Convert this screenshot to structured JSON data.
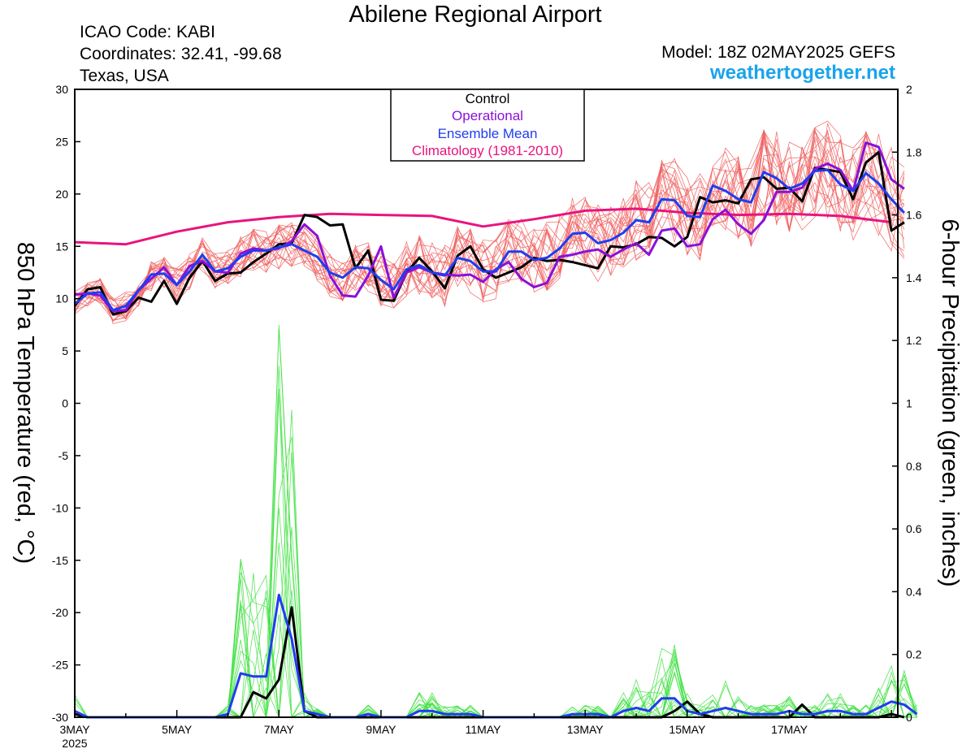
{
  "header": {
    "title": "Abilene Regional Airport",
    "icao": "ICAO Code: KABI",
    "coordinates": "Coordinates: 32.41, -99.68",
    "region": "Texas, USA",
    "model": "Model: 18Z 02MAY2025 GEFS",
    "website": "weathertogether.net"
  },
  "colors": {
    "control": "#000000",
    "operational": "#8a10d8",
    "ensemble_mean": "#1f3df0",
    "climatology": "#e8147e",
    "members_temp": "#f06060",
    "members_precip": "#3ee040",
    "website": "#1aa3ec"
  },
  "chart_data": {
    "type": "line",
    "y_left": {
      "label": "850 hPa Temperature (red, °C)",
      "range": [
        -30,
        30
      ],
      "ticks": [
        "30",
        "25",
        "20",
        "15",
        "10",
        "5",
        "0",
        "-5",
        "-10",
        "-15",
        "-20",
        "-25",
        "-30"
      ]
    },
    "y_right": {
      "label": "6-hour Precipitation (green, inches)",
      "range": [
        0,
        2
      ],
      "ticks": [
        "2",
        "1.8",
        "1.6",
        "1.4",
        "1.2",
        "1",
        "0.8",
        "0.6",
        "0.4",
        "0.2",
        "0"
      ]
    },
    "x_range_days": [
      0,
      16.125
    ],
    "x_ticks": [
      {
        "day": 0,
        "label": "3MAY",
        "sub": "2025"
      },
      {
        "day": 2,
        "label": "5MAY",
        "sub": ""
      },
      {
        "day": 4,
        "label": "7MAY",
        "sub": ""
      },
      {
        "day": 6,
        "label": "9MAY",
        "sub": ""
      },
      {
        "day": 8,
        "label": "11MAY",
        "sub": ""
      },
      {
        "day": 10,
        "label": "13MAY",
        "sub": ""
      },
      {
        "day": 12,
        "label": "15MAY",
        "sub": ""
      },
      {
        "day": 14,
        "label": "17MAY",
        "sub": ""
      }
    ],
    "legend": [
      "Control",
      "Operational",
      "Ensemble Mean",
      "Climatology (1981-2010)"
    ],
    "legend_position": "top-center",
    "grid": false,
    "series": [
      {
        "name": "Control",
        "axis": "temperature",
        "x_start_day": 0,
        "x_step_days": 0.25,
        "values": [
          9.3,
          10.9,
          11.1,
          8.5,
          8.8,
          10.1,
          9.7,
          11.7,
          9.5,
          12.0,
          13.6,
          11.7,
          12.4,
          12.5,
          13.5,
          14.3,
          15.2,
          15.3,
          18.0,
          17.8,
          17.0,
          17.1,
          12.9,
          14.6,
          9.9,
          9.8,
          12.5,
          13.9,
          12.6,
          11.0,
          14.1,
          15.0,
          12.8,
          12.0,
          12.5,
          13.0,
          13.9,
          13.6,
          13.7,
          13.5,
          13.2,
          12.9,
          15.0,
          14.9,
          15.2,
          15.9,
          15.8,
          15.0,
          15.9,
          19.7,
          19.2,
          19.4,
          19.1,
          21.4,
          21.6,
          20.5,
          20.6,
          19.3,
          22.5,
          22.3,
          22.1,
          19.5,
          23.0,
          24.0,
          16.5,
          17.3
        ]
      },
      {
        "name": "Operational",
        "axis": "temperature",
        "x_start_day": 0,
        "x_step_days": 0.25,
        "values": [
          10.4,
          10.5,
          10.3,
          8.8,
          8.9,
          10.8,
          11.9,
          13.0,
          11.3,
          13.1,
          13.6,
          12.6,
          12.5,
          14.3,
          14.8,
          14.6,
          14.8,
          15.5,
          17.1,
          16.0,
          12.2,
          10.3,
          10.2,
          12.2,
          15.0,
          10.1,
          12.5,
          13.0,
          12.5,
          12.3,
          12.2,
          12.3,
          11.6,
          12.8,
          13.5,
          11.9,
          11.1,
          11.5,
          14.0,
          14.2,
          14.5,
          14.7,
          14.0,
          14.7,
          15.3,
          14.2,
          16.5,
          16.7,
          15.0,
          15.2,
          17.6,
          18.5,
          17.1,
          16.2,
          17.5,
          20.2,
          20.2,
          20.6,
          22.4,
          22.9,
          22.3,
          20.3,
          24.9,
          24.5,
          21.4,
          20.5
        ]
      },
      {
        "name": "Ensemble Mean",
        "axis": "temperature",
        "x_start_day": 0,
        "x_step_days": 0.25,
        "values": [
          9.5,
          10.5,
          10.6,
          8.9,
          9.3,
          10.8,
          12.3,
          12.4,
          11.3,
          12.6,
          14.2,
          12.6,
          12.9,
          14.0,
          14.6,
          14.6,
          14.9,
          15.2,
          14.6,
          14.0,
          12.5,
          12.0,
          13.0,
          12.9,
          11.8,
          10.9,
          12.8,
          13.2,
          12.5,
          12.2,
          13.9,
          13.6,
          12.6,
          12.6,
          14.5,
          14.5,
          13.7,
          13.9,
          14.8,
          16.2,
          16.3,
          15.3,
          15.6,
          16.3,
          17.5,
          17.3,
          19.5,
          19.4,
          17.9,
          17.8,
          20.8,
          20.3,
          19.5,
          19.2,
          22.1,
          21.5,
          20.5,
          21.0,
          22.2,
          22.3,
          20.9,
          20.3,
          22.0,
          21.0,
          19.5,
          18.2
        ]
      },
      {
        "name": "Climatology (1981-2010)",
        "axis": "temperature",
        "x_start_day": 0,
        "x_step_days": 1,
        "values": [
          15.4,
          15.2,
          16.4,
          17.3,
          17.8,
          18.1,
          18.0,
          17.9,
          16.9,
          17.6,
          18.4,
          18.6,
          18.2,
          18.0,
          18.1,
          17.9,
          17.3
        ]
      },
      {
        "name": "Control",
        "axis": "precipitation",
        "x_start_day": 0,
        "x_step_days": 0.25,
        "values": [
          0.01,
          0,
          0,
          0,
          0,
          0,
          0,
          0,
          0,
          0,
          0,
          0,
          0,
          0,
          0.08,
          0.06,
          0.12,
          0.35,
          0.02,
          0,
          0,
          0,
          0,
          0,
          0,
          0,
          0,
          0,
          0,
          0,
          0,
          0,
          0,
          0,
          0,
          0,
          0,
          0,
          0,
          0,
          0,
          0,
          0,
          0,
          0,
          0,
          0,
          0.02,
          0.05,
          0.01,
          0,
          0,
          0,
          0,
          0,
          0,
          0,
          0.04,
          0,
          0,
          0,
          0,
          0,
          0,
          0.01,
          0
        ]
      },
      {
        "name": "Ensemble Mean",
        "axis": "precipitation",
        "x_start_day": 0,
        "x_step_days": 0.25,
        "values": [
          0.02,
          0,
          0,
          0,
          0,
          0,
          0,
          0,
          0,
          0,
          0,
          0,
          0.01,
          0.14,
          0.13,
          0.13,
          0.39,
          0.25,
          0.02,
          0.01,
          0,
          0,
          0,
          0.01,
          0,
          0,
          0,
          0.02,
          0.02,
          0.01,
          0.01,
          0.01,
          0,
          0,
          0,
          0,
          0,
          0,
          0,
          0.01,
          0.01,
          0.01,
          0,
          0.02,
          0.03,
          0.02,
          0.06,
          0.06,
          0.02,
          0.01,
          0.02,
          0.03,
          0.02,
          0.01,
          0.01,
          0.01,
          0.02,
          0.01,
          0.01,
          0.02,
          0.02,
          0.01,
          0.01,
          0.03,
          0.05,
          0.04,
          0.01
        ]
      }
    ]
  }
}
